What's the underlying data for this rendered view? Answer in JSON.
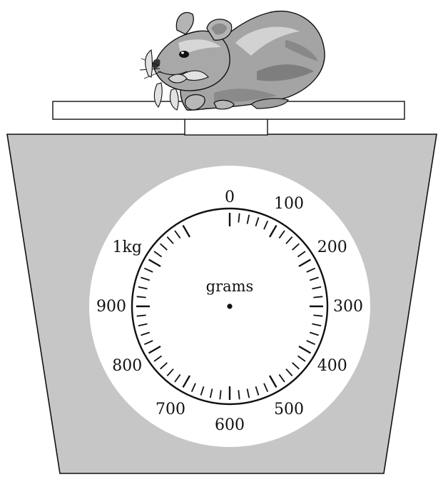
{
  "scale": {
    "unit": "grams",
    "labels": [
      "0",
      "100",
      "200",
      "300",
      "400",
      "500",
      "600",
      "700",
      "800",
      "900",
      "1kg"
    ]
  },
  "colors": {
    "scale_body": "#c6c6c6",
    "dial_face": "#ffffff",
    "outline": "#111111",
    "hamster_fur": "#9a9a9a"
  },
  "icons": {
    "animal": "hamster-icon"
  }
}
